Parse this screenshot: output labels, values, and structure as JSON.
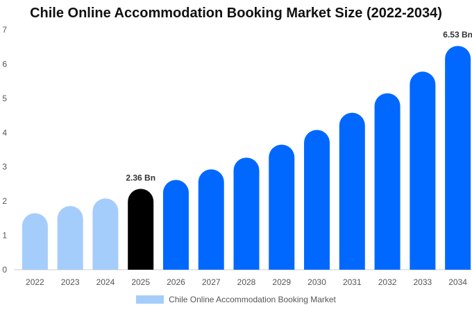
{
  "chart_data": {
    "type": "bar",
    "title": "Chile Online Accommodation Booking Market Size (2022-2034)",
    "xlabel": "",
    "ylabel": "",
    "categories": [
      "2022",
      "2023",
      "2024",
      "2025",
      "2026",
      "2027",
      "2028",
      "2029",
      "2030",
      "2031",
      "2032",
      "2033",
      "2034"
    ],
    "series": [
      {
        "name": "Chile Online Accommodation Booking Market",
        "values": [
          1.65,
          1.86,
          2.08,
          2.36,
          2.62,
          2.93,
          3.27,
          3.65,
          4.08,
          4.58,
          5.15,
          5.78,
          6.53
        ]
      }
    ],
    "data_labels": [
      {
        "category": "2025",
        "text": "2.36 Bn"
      },
      {
        "category": "2034",
        "text": "6.53 Bn"
      }
    ],
    "ylim": [
      0,
      7
    ],
    "yticks": [
      0,
      1,
      2,
      3,
      4,
      5,
      6,
      7
    ],
    "grid": false,
    "legend": "bottom",
    "colors": {
      "historical": "#a5cdfb",
      "base_year": "#000000",
      "forecast": "#0068ff",
      "axis": "#cccccc",
      "tick_text": "#555555"
    },
    "bar_color_by_category": [
      "historical",
      "historical",
      "historical",
      "base_year",
      "forecast",
      "forecast",
      "forecast",
      "forecast",
      "forecast",
      "forecast",
      "forecast",
      "forecast",
      "forecast"
    ]
  }
}
